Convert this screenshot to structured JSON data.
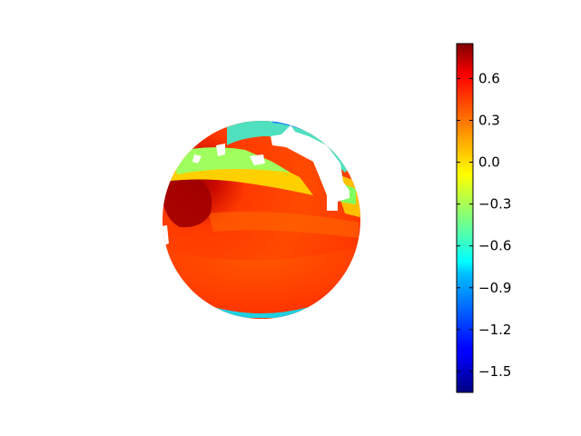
{
  "chart_data": {
    "type": "heatmap",
    "projection": "orthographic globe",
    "colormap": "jet",
    "title": "",
    "colorbar": {
      "vmin": -1.65,
      "vmax": 0.85,
      "ticks": [
        0.6,
        0.3,
        0.0,
        -0.3,
        -0.6,
        -0.9,
        -1.2,
        -1.5
      ],
      "tick_labels": [
        "0.6",
        "0.3",
        "0.0",
        "−0.3",
        "−0.6",
        "−0.9",
        "−1.2",
        "−1.5"
      ]
    }
  }
}
